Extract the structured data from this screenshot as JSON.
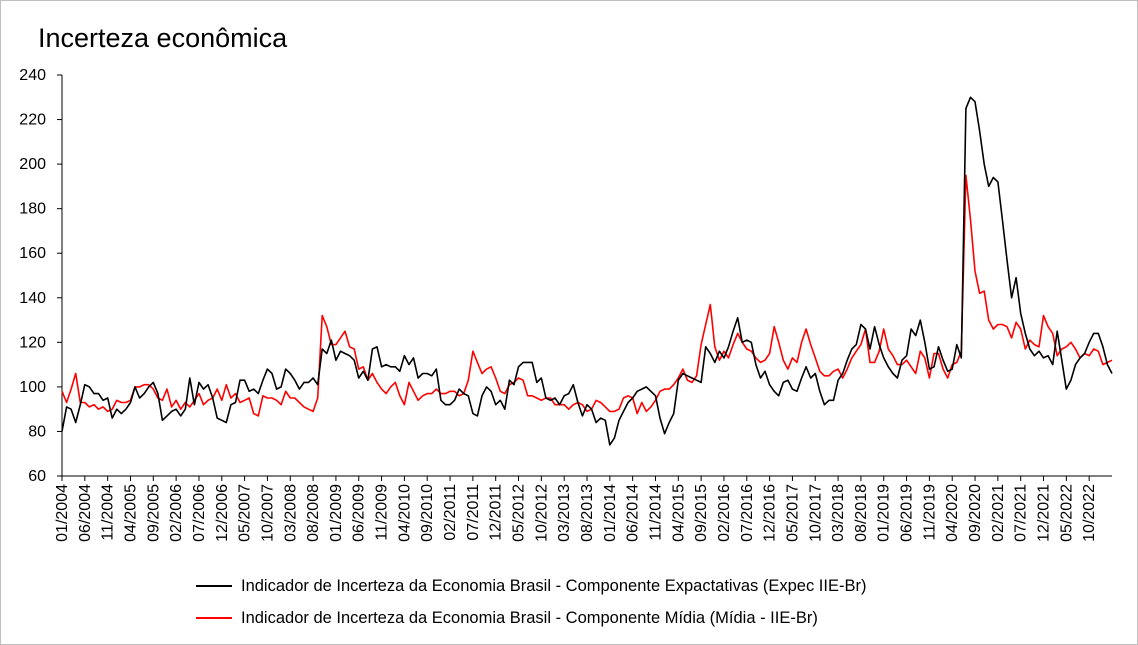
{
  "chart_data": {
    "type": "line",
    "title": "Incerteza econômica",
    "xlabel": "",
    "ylabel": "",
    "ylim": [
      60,
      240
    ],
    "yticks": [
      60,
      80,
      100,
      120,
      140,
      160,
      180,
      200,
      220,
      240
    ],
    "x_tick_labels": [
      "01/2004",
      "06/2004",
      "11/2004",
      "04/2005",
      "09/2005",
      "02/2006",
      "07/2006",
      "12/2006",
      "05/2007",
      "10/2007",
      "03/2008",
      "08/2008",
      "01/2009",
      "06/2009",
      "11/2009",
      "04/2010",
      "09/2010",
      "02/2011",
      "07/2011",
      "12/2011",
      "05/2012",
      "10/2012",
      "03/2013",
      "08/2013",
      "01/2014",
      "06/2014",
      "11/2014",
      "04/2015",
      "09/2015",
      "02/2016",
      "07/2016",
      "12/2016",
      "05/2017",
      "10/2017",
      "03/2018",
      "08/2018",
      "01/2019",
      "06/2019",
      "11/2019",
      "04/2020",
      "09/2020",
      "02/2021",
      "07/2021",
      "12/2021",
      "05/2022",
      "10/2022"
    ],
    "series": [
      {
        "name": "Indicador de Incerteza da Economia Brasil - Componente Expactativas (Expec IIE-Br)",
        "color": "#000000",
        "values": [
          80,
          91,
          90,
          84,
          92,
          101,
          100,
          97,
          97,
          94,
          95,
          86,
          90,
          88,
          90,
          93,
          100,
          95,
          97,
          100,
          102,
          97,
          85,
          87,
          89,
          90,
          87,
          90,
          104,
          92,
          102,
          99,
          101,
          95,
          86,
          85,
          84,
          92,
          93,
          103,
          103,
          98,
          99,
          97,
          103,
          108,
          106,
          99,
          100,
          108,
          106,
          103,
          99,
          102,
          102,
          104,
          101,
          117,
          115,
          121,
          112,
          116,
          115,
          114,
          112,
          104,
          107,
          103,
          117,
          118,
          109,
          110,
          109,
          109,
          107,
          114,
          110,
          113,
          104,
          106,
          106,
          105,
          108,
          94,
          92,
          92,
          94,
          99,
          97,
          96,
          88,
          87,
          96,
          100,
          98,
          92,
          94,
          90,
          103,
          101,
          109,
          111,
          111,
          111,
          102,
          104,
          95,
          94,
          95,
          92,
          96,
          97,
          101,
          93,
          87,
          92,
          90,
          84,
          86,
          85,
          74,
          77,
          85,
          89,
          93,
          95,
          98,
          99,
          100,
          98,
          96,
          86,
          79,
          84,
          88,
          103,
          106,
          105,
          104,
          103,
          102,
          118,
          115,
          111,
          116,
          113,
          118,
          125,
          131,
          120,
          121,
          120,
          110,
          104,
          107,
          101,
          98,
          96,
          102,
          103,
          99,
          98,
          104,
          109,
          104,
          106,
          98,
          92,
          94,
          94,
          103,
          106,
          112,
          117,
          119,
          128,
          126,
          117,
          127,
          119,
          113,
          109,
          106,
          104,
          112,
          114,
          126,
          123,
          130,
          120,
          108,
          109,
          118,
          112,
          107,
          108,
          119,
          113,
          225,
          230,
          228,
          215,
          200,
          190,
          194,
          192,
          175,
          157,
          140,
          149,
          133,
          124,
          117,
          114,
          116,
          113,
          114,
          110,
          125,
          112,
          99,
          103,
          110,
          113,
          115,
          120,
          124,
          124,
          118,
          110,
          106
        ]
      },
      {
        "name": "Indicador de Incerteza da Economia Brasil - Componente Mídia (Mídia - IIE-Br)",
        "color": "#ff0000",
        "values": [
          98,
          93,
          99,
          106,
          93,
          93,
          91,
          92,
          90,
          91,
          89,
          90,
          94,
          93,
          93,
          94,
          100,
          100,
          101,
          101,
          99,
          95,
          94,
          99,
          91,
          94,
          90,
          93,
          91,
          94,
          97,
          92,
          94,
          95,
          99,
          94,
          101,
          95,
          97,
          93,
          94,
          95,
          88,
          87,
          96,
          95,
          95,
          94,
          92,
          98,
          95,
          95,
          93,
          91,
          90,
          89,
          95,
          132,
          127,
          119,
          119,
          122,
          125,
          118,
          117,
          108,
          109,
          103,
          106,
          102,
          99,
          97,
          100,
          102,
          96,
          92,
          102,
          98,
          94,
          96,
          97,
          97,
          99,
          97,
          97,
          98,
          98,
          96,
          97,
          103,
          116,
          111,
          106,
          108,
          109,
          104,
          98,
          97,
          101,
          102,
          104,
          103,
          96,
          96,
          95,
          94,
          95,
          95,
          92,
          92,
          92,
          90,
          92,
          93,
          92,
          89,
          90,
          94,
          93,
          91,
          89,
          89,
          90,
          95,
          96,
          95,
          88,
          93,
          89,
          91,
          94,
          98,
          99,
          99,
          101,
          104,
          108,
          103,
          102,
          105,
          119,
          128,
          137,
          118,
          112,
          116,
          113,
          119,
          124,
          120,
          117,
          116,
          113,
          111,
          112,
          115,
          127,
          120,
          112,
          108,
          113,
          111,
          120,
          126,
          119,
          113,
          107,
          105,
          105,
          107,
          108,
          104,
          108,
          113,
          116,
          119,
          126,
          111,
          111,
          116,
          126,
          117,
          114,
          110,
          110,
          112,
          109,
          106,
          116,
          113,
          104,
          115,
          115,
          108,
          104,
          110,
          111,
          116,
          195,
          175,
          152,
          142,
          143,
          130,
          126,
          128,
          128,
          127,
          122,
          129,
          126,
          117,
          121,
          119,
          118,
          132,
          127,
          124,
          114,
          117,
          118,
          120,
          117,
          113,
          115,
          114,
          117,
          116,
          110,
          111,
          112
        ]
      }
    ],
    "legend": {
      "position": "bottom",
      "entries": [
        "Indicador de Incerteza da Economia Brasil - Componente Expactativas (Expec IIE-Br)",
        "Indicador de Incerteza da Economia Brasil - Componente Mídia (Mídia - IIE-Br)"
      ]
    },
    "grid": false
  }
}
